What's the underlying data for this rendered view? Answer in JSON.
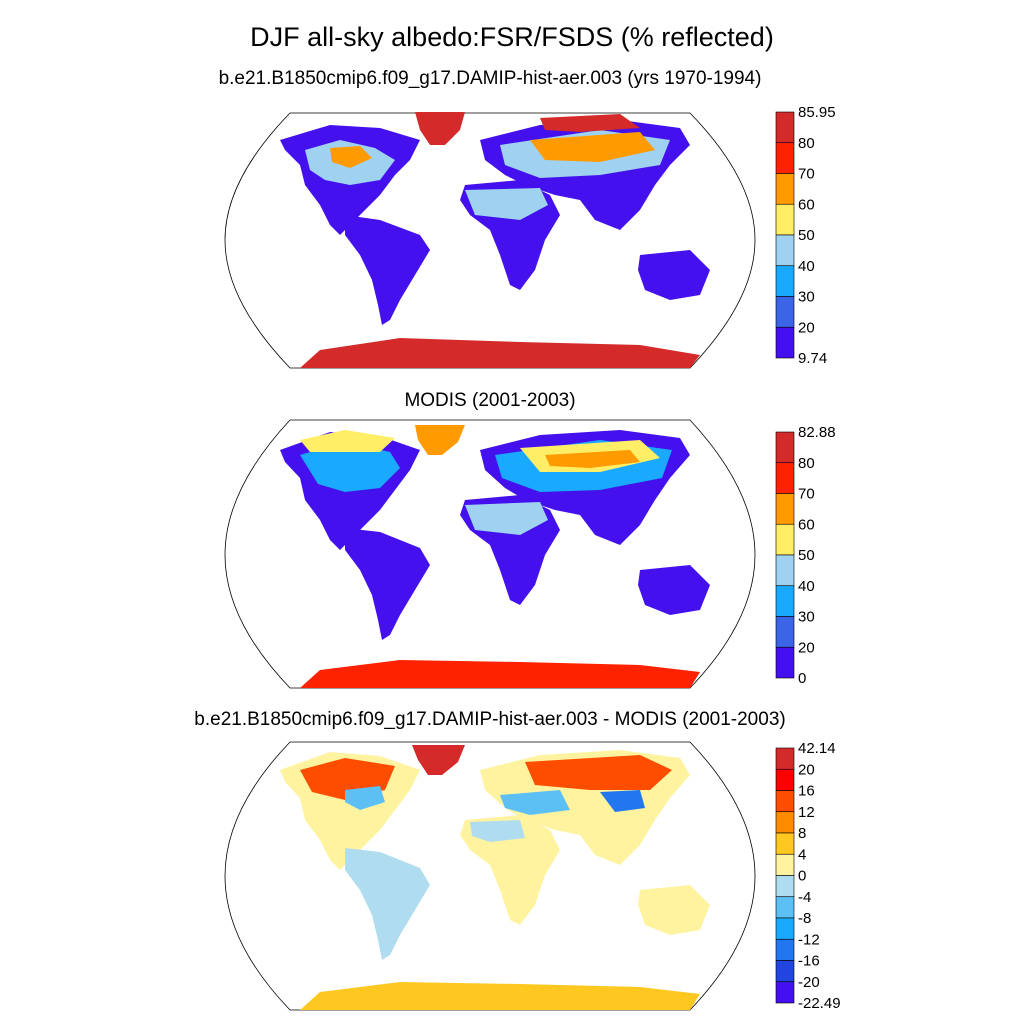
{
  "figure": {
    "title": "DJF all-sky albedo:FSR/FSDS (% reflected)"
  },
  "panels": [
    {
      "id": "model",
      "title": "b.e21.B1850cmip6.f09_g17.DAMIP-hist-aer.003 (yrs 1970-1994)",
      "projection": "robinson",
      "colorbar": {
        "labels": [
          "85.95",
          "80",
          "70",
          "60",
          "50",
          "40",
          "30",
          "20",
          "9.74"
        ],
        "colors": [
          "#d42a2a",
          "#ff2200",
          "#ff9a00",
          "#ffee66",
          "#9ed2f0",
          "#19aaff",
          "#3c64e6",
          "#4411ee"
        ]
      },
      "values": {
        "min": 9.74,
        "max": 85.95
      }
    },
    {
      "id": "obs",
      "title": "MODIS (2001-2003)",
      "projection": "robinson",
      "colorbar": {
        "labels": [
          "82.88",
          "80",
          "70",
          "60",
          "50",
          "40",
          "30",
          "20",
          "0"
        ],
        "colors": [
          "#d42a2a",
          "#ff2200",
          "#ff9a00",
          "#ffee66",
          "#9ed2f0",
          "#19aaff",
          "#3c64e6",
          "#4411ee"
        ]
      },
      "values": {
        "min": 0,
        "max": 82.88
      }
    },
    {
      "id": "diff",
      "title": "b.e21.B1850cmip6.f09_g17.DAMIP-hist-aer.003 - MODIS (2001-2003)",
      "projection": "robinson",
      "colorbar": {
        "labels": [
          "42.14",
          "20",
          "16",
          "12",
          "8",
          "4",
          "0",
          "-4",
          "-8",
          "-12",
          "-16",
          "-20",
          "-22.49"
        ],
        "colors": [
          "#d42a2a",
          "#ff0000",
          "#ff4d00",
          "#ff8c00",
          "#ffc820",
          "#fff3a0",
          "#b0dcf0",
          "#5cc0f5",
          "#19aaff",
          "#2277f0",
          "#2244e0",
          "#4411ee"
        ]
      },
      "values": {
        "min": -22.49,
        "max": 42.14
      }
    }
  ]
}
